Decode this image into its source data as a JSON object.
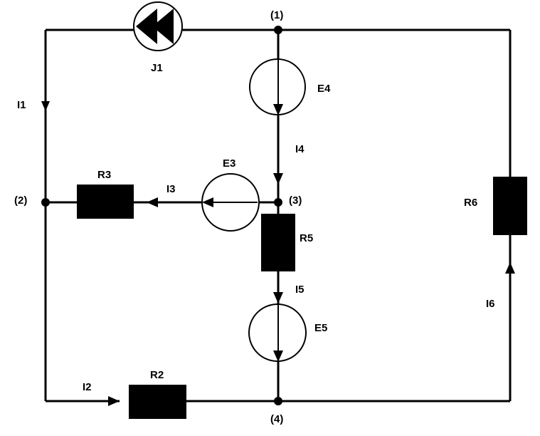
{
  "nodes": {
    "n1": "(1)",
    "n2": "(2)",
    "n3": "(3)",
    "n4": "(4)"
  },
  "components": {
    "J1": "J1",
    "E3": "E3",
    "E4": "E4",
    "E5": "E5",
    "R2": "R2",
    "R3": "R3",
    "R5": "R5",
    "R6": "R6"
  },
  "currents": {
    "I1": "I1",
    "I2": "I2",
    "I3": "I3",
    "I4": "I4",
    "I5": "I5",
    "I6": "I6"
  }
}
